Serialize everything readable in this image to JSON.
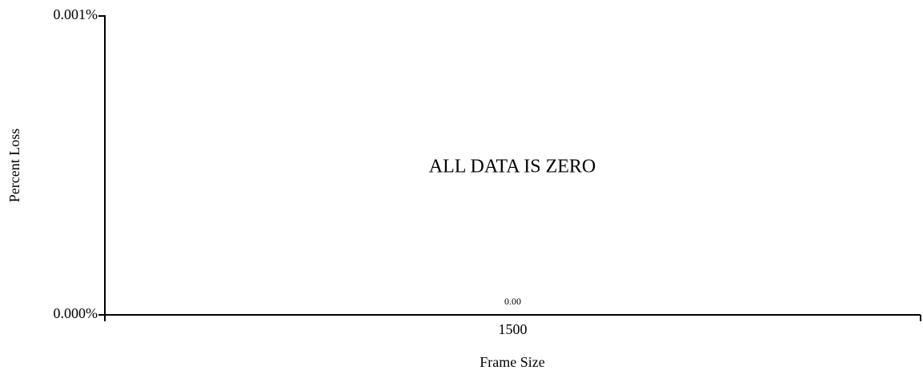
{
  "chart_data": {
    "type": "bar",
    "categories": [
      "1500"
    ],
    "values": [
      0
    ],
    "value_labels": [
      "0.00"
    ],
    "color": "#000000",
    "xlabel": "Frame Size",
    "ylabel": "Percent Loss",
    "annotation": "ALL DATA IS ZERO",
    "ylim": [
      0,
      0.001
    ],
    "yticks": [
      {
        "value": 0,
        "label": "0.000%"
      },
      {
        "value": 0.001,
        "label": "0.001%"
      }
    ]
  }
}
